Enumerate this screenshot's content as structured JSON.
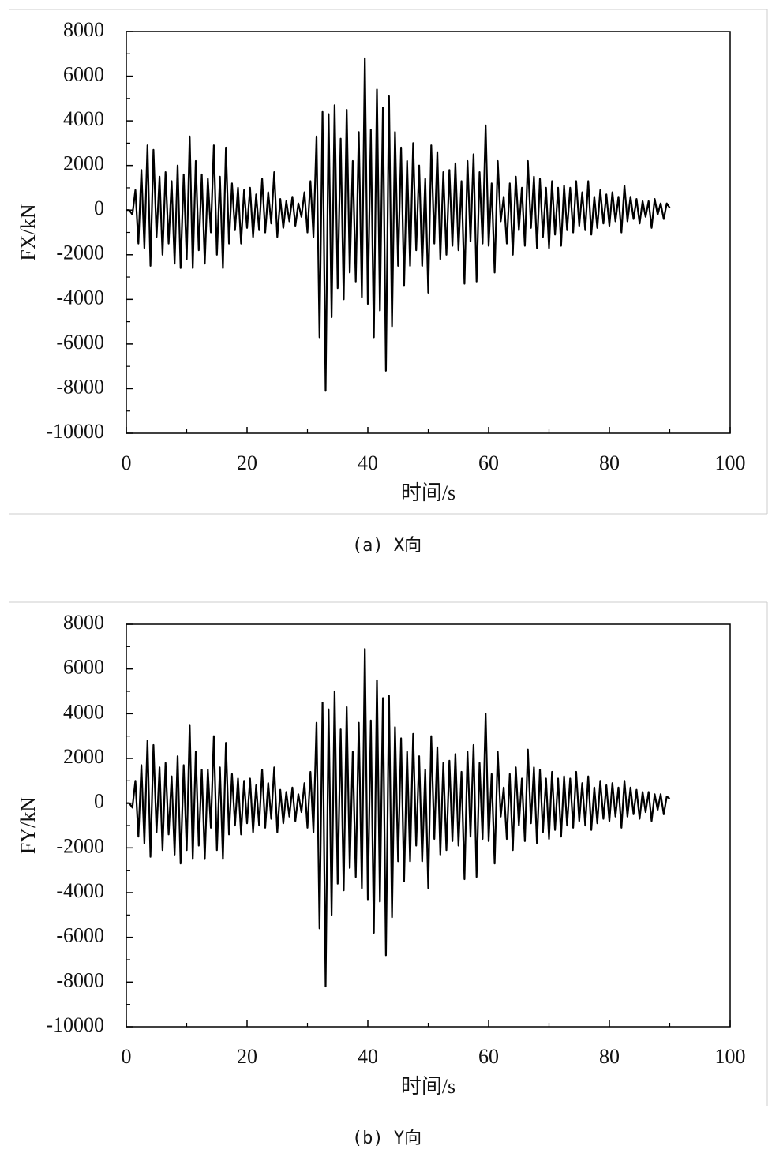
{
  "chart_data": [
    {
      "type": "line",
      "caption": "(a) X向",
      "xlabel": "时间/s",
      "ylabel": "FX/kN",
      "xlim": [
        0,
        100
      ],
      "xticks": [
        0,
        20,
        40,
        60,
        80,
        100
      ],
      "xticks_minor": [
        10,
        30,
        50,
        70,
        90
      ],
      "ylim": [
        -10000,
        8000
      ],
      "yticks": [
        -10000,
        -8000,
        -6000,
        -4000,
        -2000,
        0,
        2000,
        4000,
        6000,
        8000
      ],
      "yticks_minor": [
        -9000,
        -7000,
        -5000,
        -3000,
        -1000,
        1000,
        3000,
        5000,
        7000
      ],
      "x": [
        0,
        0.5,
        1,
        1.5,
        2,
        2.5,
        3,
        3.5,
        4,
        4.5,
        5,
        5.5,
        6,
        6.5,
        7,
        7.5,
        8,
        8.5,
        9,
        9.5,
        10,
        10.5,
        11,
        11.5,
        12,
        12.5,
        13,
        13.5,
        14,
        14.5,
        15,
        15.5,
        16,
        16.5,
        17,
        17.5,
        18,
        18.5,
        19,
        19.5,
        20,
        20.5,
        21,
        21.5,
        22,
        22.5,
        23,
        23.5,
        24,
        24.5,
        25,
        25.5,
        26,
        26.5,
        27,
        27.5,
        28,
        28.5,
        29,
        29.5,
        30,
        30.5,
        31,
        31.5,
        32,
        32.5,
        33,
        33.5,
        34,
        34.5,
        35,
        35.5,
        36,
        36.5,
        37,
        37.5,
        38,
        38.5,
        39,
        39.5,
        40,
        40.5,
        41,
        41.5,
        42,
        42.5,
        43,
        43.5,
        44,
        44.5,
        45,
        45.5,
        46,
        46.5,
        47,
        47.5,
        48,
        48.5,
        49,
        49.5,
        50,
        50.5,
        51,
        51.5,
        52,
        52.5,
        53,
        53.5,
        54,
        54.5,
        55,
        55.5,
        56,
        56.5,
        57,
        57.5,
        58,
        58.5,
        59,
        59.5,
        60,
        60.5,
        61,
        61.5,
        62,
        62.5,
        63,
        63.5,
        64,
        64.5,
        65,
        65.5,
        66,
        66.5,
        67,
        67.5,
        68,
        68.5,
        69,
        69.5,
        70,
        70.5,
        71,
        71.5,
        72,
        72.5,
        73,
        73.5,
        74,
        74.5,
        75,
        75.5,
        76,
        76.5,
        77,
        77.5,
        78,
        78.5,
        79,
        79.5,
        80,
        80.5,
        81,
        81.5,
        82,
        82.5,
        83,
        83.5,
        84,
        84.5,
        85,
        85.5,
        86,
        86.5,
        87,
        87.5,
        88,
        88.5,
        89,
        89.5,
        90
      ],
      "series": [
        {
          "color": "#000000",
          "values": [
            0,
            0,
            -200,
            900,
            -1500,
            1800,
            -1700,
            2900,
            -2500,
            2700,
            -1200,
            1500,
            -2000,
            1700,
            -1500,
            1300,
            -2400,
            2000,
            -2600,
            1600,
            -2200,
            3300,
            -2600,
            2200,
            -1800,
            1600,
            -2400,
            1400,
            -1000,
            2900,
            -2000,
            1500,
            -2600,
            2800,
            -1500,
            1200,
            -900,
            1000,
            -1500,
            900,
            -800,
            1000,
            -1200,
            700,
            -900,
            1400,
            -1000,
            800,
            -600,
            1700,
            -1200,
            500,
            -800,
            400,
            -500,
            600,
            -700,
            300,
            -300,
            800,
            -1000,
            1300,
            -1200,
            3300,
            -5700,
            4400,
            -8100,
            4300,
            -4800,
            4700,
            -3500,
            3200,
            -4000,
            4500,
            -2800,
            2200,
            -3200,
            3500,
            -3900,
            6800,
            -4200,
            3600,
            -5700,
            5400,
            -4500,
            4600,
            -7200,
            5100,
            -5200,
            3500,
            -2500,
            2800,
            -3400,
            2200,
            -2500,
            3000,
            -1800,
            2000,
            -2500,
            1400,
            -3700,
            2900,
            -1500,
            2600,
            -2200,
            1700,
            -2000,
            1800,
            -1600,
            2100,
            -1800,
            1300,
            -3300,
            2200,
            -1400,
            2500,
            -3200,
            1700,
            -1500,
            3800,
            -1600,
            1200,
            -2800,
            2200,
            -500,
            600,
            -1500,
            1200,
            -2000,
            1500,
            -900,
            1000,
            -1600,
            2200,
            -800,
            1500,
            -1700,
            1400,
            -1200,
            1000,
            -1700,
            1300,
            -1100,
            1000,
            -1600,
            1100,
            -900,
            1000,
            -1000,
            1300,
            -700,
            800,
            -900,
            1300,
            -1100,
            600,
            -800,
            900,
            -600,
            700,
            -700,
            800,
            -500,
            600,
            -1000,
            1100,
            -500,
            600,
            -400,
            500,
            -600,
            400,
            -300,
            400,
            -800,
            500,
            -200,
            300,
            -400,
            300,
            100
          ]
        }
      ]
    },
    {
      "type": "line",
      "caption": "(b) Y向",
      "xlabel": "时间/s",
      "ylabel": "FY/kN",
      "xlim": [
        0,
        100
      ],
      "xticks": [
        0,
        20,
        40,
        60,
        80,
        100
      ],
      "xticks_minor": [
        10,
        30,
        50,
        70,
        90
      ],
      "ylim": [
        -10000,
        8000
      ],
      "yticks": [
        -10000,
        -8000,
        -6000,
        -4000,
        -2000,
        0,
        2000,
        4000,
        6000,
        8000
      ],
      "yticks_minor": [
        -9000,
        -7000,
        -5000,
        -3000,
        -1000,
        1000,
        3000,
        5000,
        7000
      ],
      "x": [
        0,
        0.5,
        1,
        1.5,
        2,
        2.5,
        3,
        3.5,
        4,
        4.5,
        5,
        5.5,
        6,
        6.5,
        7,
        7.5,
        8,
        8.5,
        9,
        9.5,
        10,
        10.5,
        11,
        11.5,
        12,
        12.5,
        13,
        13.5,
        14,
        14.5,
        15,
        15.5,
        16,
        16.5,
        17,
        17.5,
        18,
        18.5,
        19,
        19.5,
        20,
        20.5,
        21,
        21.5,
        22,
        22.5,
        23,
        23.5,
        24,
        24.5,
        25,
        25.5,
        26,
        26.5,
        27,
        27.5,
        28,
        28.5,
        29,
        29.5,
        30,
        30.5,
        31,
        31.5,
        32,
        32.5,
        33,
        33.5,
        34,
        34.5,
        35,
        35.5,
        36,
        36.5,
        37,
        37.5,
        38,
        38.5,
        39,
        39.5,
        40,
        40.5,
        41,
        41.5,
        42,
        42.5,
        43,
        43.5,
        44,
        44.5,
        45,
        45.5,
        46,
        46.5,
        47,
        47.5,
        48,
        48.5,
        49,
        49.5,
        50,
        50.5,
        51,
        51.5,
        52,
        52.5,
        53,
        53.5,
        54,
        54.5,
        55,
        55.5,
        56,
        56.5,
        57,
        57.5,
        58,
        58.5,
        59,
        59.5,
        60,
        60.5,
        61,
        61.5,
        62,
        62.5,
        63,
        63.5,
        64,
        64.5,
        65,
        65.5,
        66,
        66.5,
        67,
        67.5,
        68,
        68.5,
        69,
        69.5,
        70,
        70.5,
        71,
        71.5,
        72,
        72.5,
        73,
        73.5,
        74,
        74.5,
        75,
        75.5,
        76,
        76.5,
        77,
        77.5,
        78,
        78.5,
        79,
        79.5,
        80,
        80.5,
        81,
        81.5,
        82,
        82.5,
        83,
        83.5,
        84,
        84.5,
        85,
        85.5,
        86,
        86.5,
        87,
        87.5,
        88,
        88.5,
        89,
        89.5,
        90
      ],
      "series": [
        {
          "color": "#000000",
          "values": [
            0,
            0,
            -200,
            1000,
            -1500,
            1700,
            -1800,
            2800,
            -2400,
            2600,
            -1300,
            1600,
            -2100,
            1800,
            -1400,
            1200,
            -2300,
            2100,
            -2700,
            1700,
            -2100,
            3500,
            -2500,
            2300,
            -1900,
            1500,
            -2500,
            1500,
            -1100,
            3000,
            -2100,
            1600,
            -2500,
            2700,
            -1400,
            1300,
            -1000,
            1100,
            -1400,
            1000,
            -900,
            1100,
            -1300,
            800,
            -1000,
            1500,
            -1100,
            900,
            -700,
            1600,
            -1300,
            600,
            -900,
            500,
            -600,
            700,
            -800,
            400,
            -400,
            900,
            -1100,
            1400,
            -1300,
            3600,
            -5600,
            4500,
            -8200,
            4200,
            -5000,
            5000,
            -3600,
            3300,
            -3900,
            4300,
            -2900,
            2300,
            -3300,
            3600,
            -3800,
            6900,
            -4300,
            3700,
            -5800,
            5500,
            -4400,
            4700,
            -6800,
            4800,
            -5100,
            3400,
            -2600,
            2900,
            -3500,
            2300,
            -2600,
            3100,
            -1900,
            2100,
            -2600,
            1500,
            -3800,
            3000,
            -1600,
            2500,
            -2300,
            1800,
            -2100,
            1900,
            -1700,
            2200,
            -1900,
            1400,
            -3400,
            2300,
            -1500,
            2600,
            -3300,
            1800,
            -1600,
            4000,
            -1700,
            1300,
            -2700,
            2300,
            -600,
            700,
            -1600,
            1300,
            -2100,
            1600,
            -1000,
            1100,
            -1700,
            2400,
            -900,
            1600,
            -1800,
            1500,
            -1300,
            1100,
            -1600,
            1400,
            -1200,
            1100,
            -1500,
            1200,
            -1000,
            1100,
            -1100,
            1400,
            -800,
            900,
            -1000,
            1200,
            -1200,
            700,
            -900,
            1000,
            -700,
            800,
            -800,
            900,
            -600,
            700,
            -1100,
            1000,
            -600,
            700,
            -500,
            600,
            -700,
            500,
            -400,
            500,
            -800,
            400,
            -300,
            400,
            -500,
            300,
            200
          ]
        }
      ]
    }
  ]
}
